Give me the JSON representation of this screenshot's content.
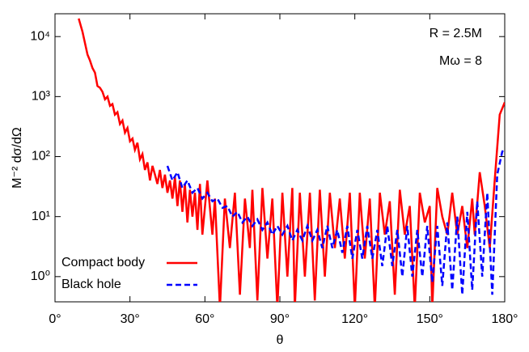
{
  "chart_data": {
    "type": "line",
    "xlabel": "θ",
    "ylabel": "M⁻² dσ/dΩ",
    "annotations": [
      "R = 2.5M",
      "Mω = 8"
    ],
    "log_y": true,
    "xlim": [
      0,
      180
    ],
    "ylim": [
      0.38,
      24000
    ],
    "xticks": [
      {
        "value": 0,
        "label": "0°"
      },
      {
        "value": 30,
        "label": "30°"
      },
      {
        "value": 60,
        "label": "60°"
      },
      {
        "value": 90,
        "label": "90°"
      },
      {
        "value": 120,
        "label": "120°"
      },
      {
        "value": 150,
        "label": "150°"
      },
      {
        "value": 180,
        "label": "180°"
      }
    ],
    "yticks": [
      {
        "value": 1,
        "label": "10⁰"
      },
      {
        "value": 10,
        "label": "10¹"
      },
      {
        "value": 100,
        "label": "10²"
      },
      {
        "value": 1000,
        "label": "10³"
      },
      {
        "value": 10000,
        "label": "10⁴"
      }
    ],
    "legend": "lower left",
    "series": [
      {
        "name": "Compact body",
        "color": "#ff0000",
        "dash": false,
        "x": [
          9.5,
          11,
          13,
          14,
          15,
          16,
          17,
          18,
          19,
          20,
          21,
          22,
          23,
          24,
          25,
          26,
          27,
          28,
          29,
          30,
          31,
          32,
          33,
          34,
          35,
          36,
          37,
          38,
          39,
          40,
          41,
          42,
          43,
          44,
          45,
          46,
          47,
          48,
          49,
          50,
          51,
          52,
          53,
          54,
          55,
          56,
          57,
          58,
          59,
          61,
          63,
          64,
          66,
          68,
          70,
          72,
          74,
          76,
          78,
          79,
          81,
          83,
          85,
          87,
          89,
          91,
          93,
          95,
          96,
          98,
          100,
          102,
          104,
          106,
          108,
          110,
          112,
          114,
          116,
          118,
          120,
          122,
          124,
          126,
          128,
          130,
          132,
          134,
          136,
          138,
          140,
          142,
          144,
          146,
          148,
          150,
          151,
          153,
          155,
          157,
          159,
          161,
          163,
          165,
          167,
          168,
          170,
          172,
          174,
          176,
          178,
          180
        ],
        "values": [
          20000,
          12000,
          5000,
          4000,
          3000,
          2500,
          1500,
          1400,
          1200,
          900,
          1000,
          700,
          750,
          500,
          550,
          350,
          400,
          250,
          300,
          180,
          200,
          130,
          170,
          90,
          110,
          60,
          80,
          40,
          70,
          50,
          35,
          60,
          30,
          50,
          25,
          40,
          20,
          45,
          15,
          40,
          12,
          35,
          8,
          28,
          10,
          25,
          6,
          35,
          5,
          40,
          5,
          20,
          0.3,
          20,
          3,
          25,
          0.5,
          20,
          3,
          28,
          0.4,
          30,
          2,
          20,
          0.3,
          25,
          1,
          30,
          0.3,
          25,
          1,
          25,
          0.4,
          28,
          1,
          25,
          3,
          20,
          2,
          25,
          0.3,
          25,
          2,
          20,
          0.3,
          25,
          5,
          18,
          0.5,
          28,
          5,
          15,
          0.3,
          25,
          8,
          15,
          0.3,
          30,
          10,
          5,
          25,
          5,
          15,
          3,
          20,
          5,
          55,
          15,
          3,
          40,
          500,
          800
        ]
      },
      {
        "name": "Black hole",
        "color": "#0000ff",
        "dash": true,
        "x": [
          45,
          47,
          49,
          51,
          53,
          55,
          57,
          59,
          61,
          63,
          65,
          67,
          69,
          71,
          73,
          75,
          77,
          79,
          81,
          83,
          85,
          87,
          89,
          91,
          93,
          95,
          97,
          99,
          101,
          103,
          105,
          107,
          109,
          111,
          113,
          115,
          117,
          119,
          121,
          123,
          125,
          127,
          129,
          131,
          133,
          135,
          137,
          139,
          141,
          143,
          145,
          147,
          149,
          151,
          153,
          155,
          157,
          159,
          161,
          163,
          165,
          167,
          169,
          171,
          173,
          175,
          177,
          179,
          180
        ],
        "values": [
          70,
          40,
          55,
          30,
          40,
          25,
          30,
          20,
          25,
          18,
          20,
          14,
          15,
          10,
          12,
          8,
          10,
          7,
          9,
          6,
          8,
          5,
          7,
          5,
          7,
          4,
          6,
          4,
          7,
          4,
          6,
          3,
          7,
          3,
          6,
          2.5,
          7,
          2,
          6,
          2,
          7,
          2,
          6,
          1.5,
          7,
          1.5,
          6,
          1,
          7,
          1,
          6,
          1,
          7,
          0.8,
          7,
          0.7,
          8,
          0.6,
          10,
          0.5,
          12,
          0.6,
          18,
          1,
          25,
          0.5,
          50,
          120,
          140
        ]
      }
    ]
  }
}
